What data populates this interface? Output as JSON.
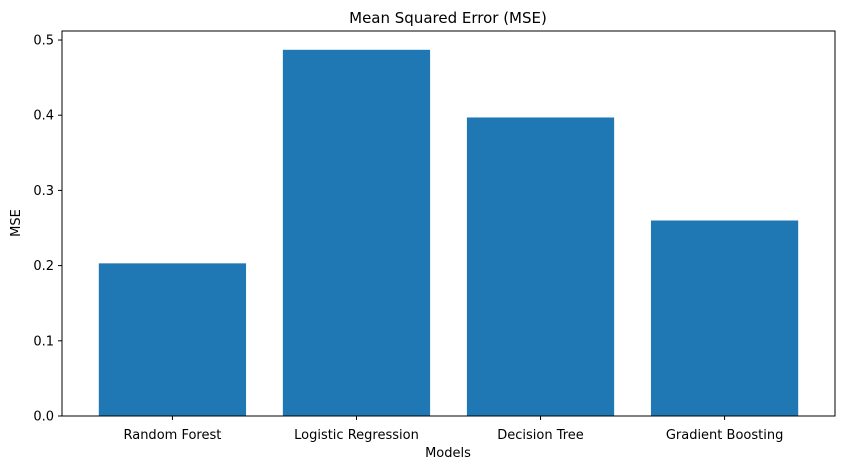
{
  "chart_data": {
    "type": "bar",
    "title": "Mean Squared Error (MSE)",
    "xlabel": "Models",
    "ylabel": "MSE",
    "categories": [
      "Random Forest",
      "Logistic Regression",
      "Decision Tree",
      "Gradient Boosting"
    ],
    "values": [
      0.203,
      0.487,
      0.397,
      0.26
    ],
    "ylim": [
      0,
      0.512
    ],
    "yticks": [
      "0.0",
      "0.1",
      "0.2",
      "0.3",
      "0.4",
      "0.5"
    ],
    "grid": false,
    "bar_color": "#1f77b4"
  }
}
